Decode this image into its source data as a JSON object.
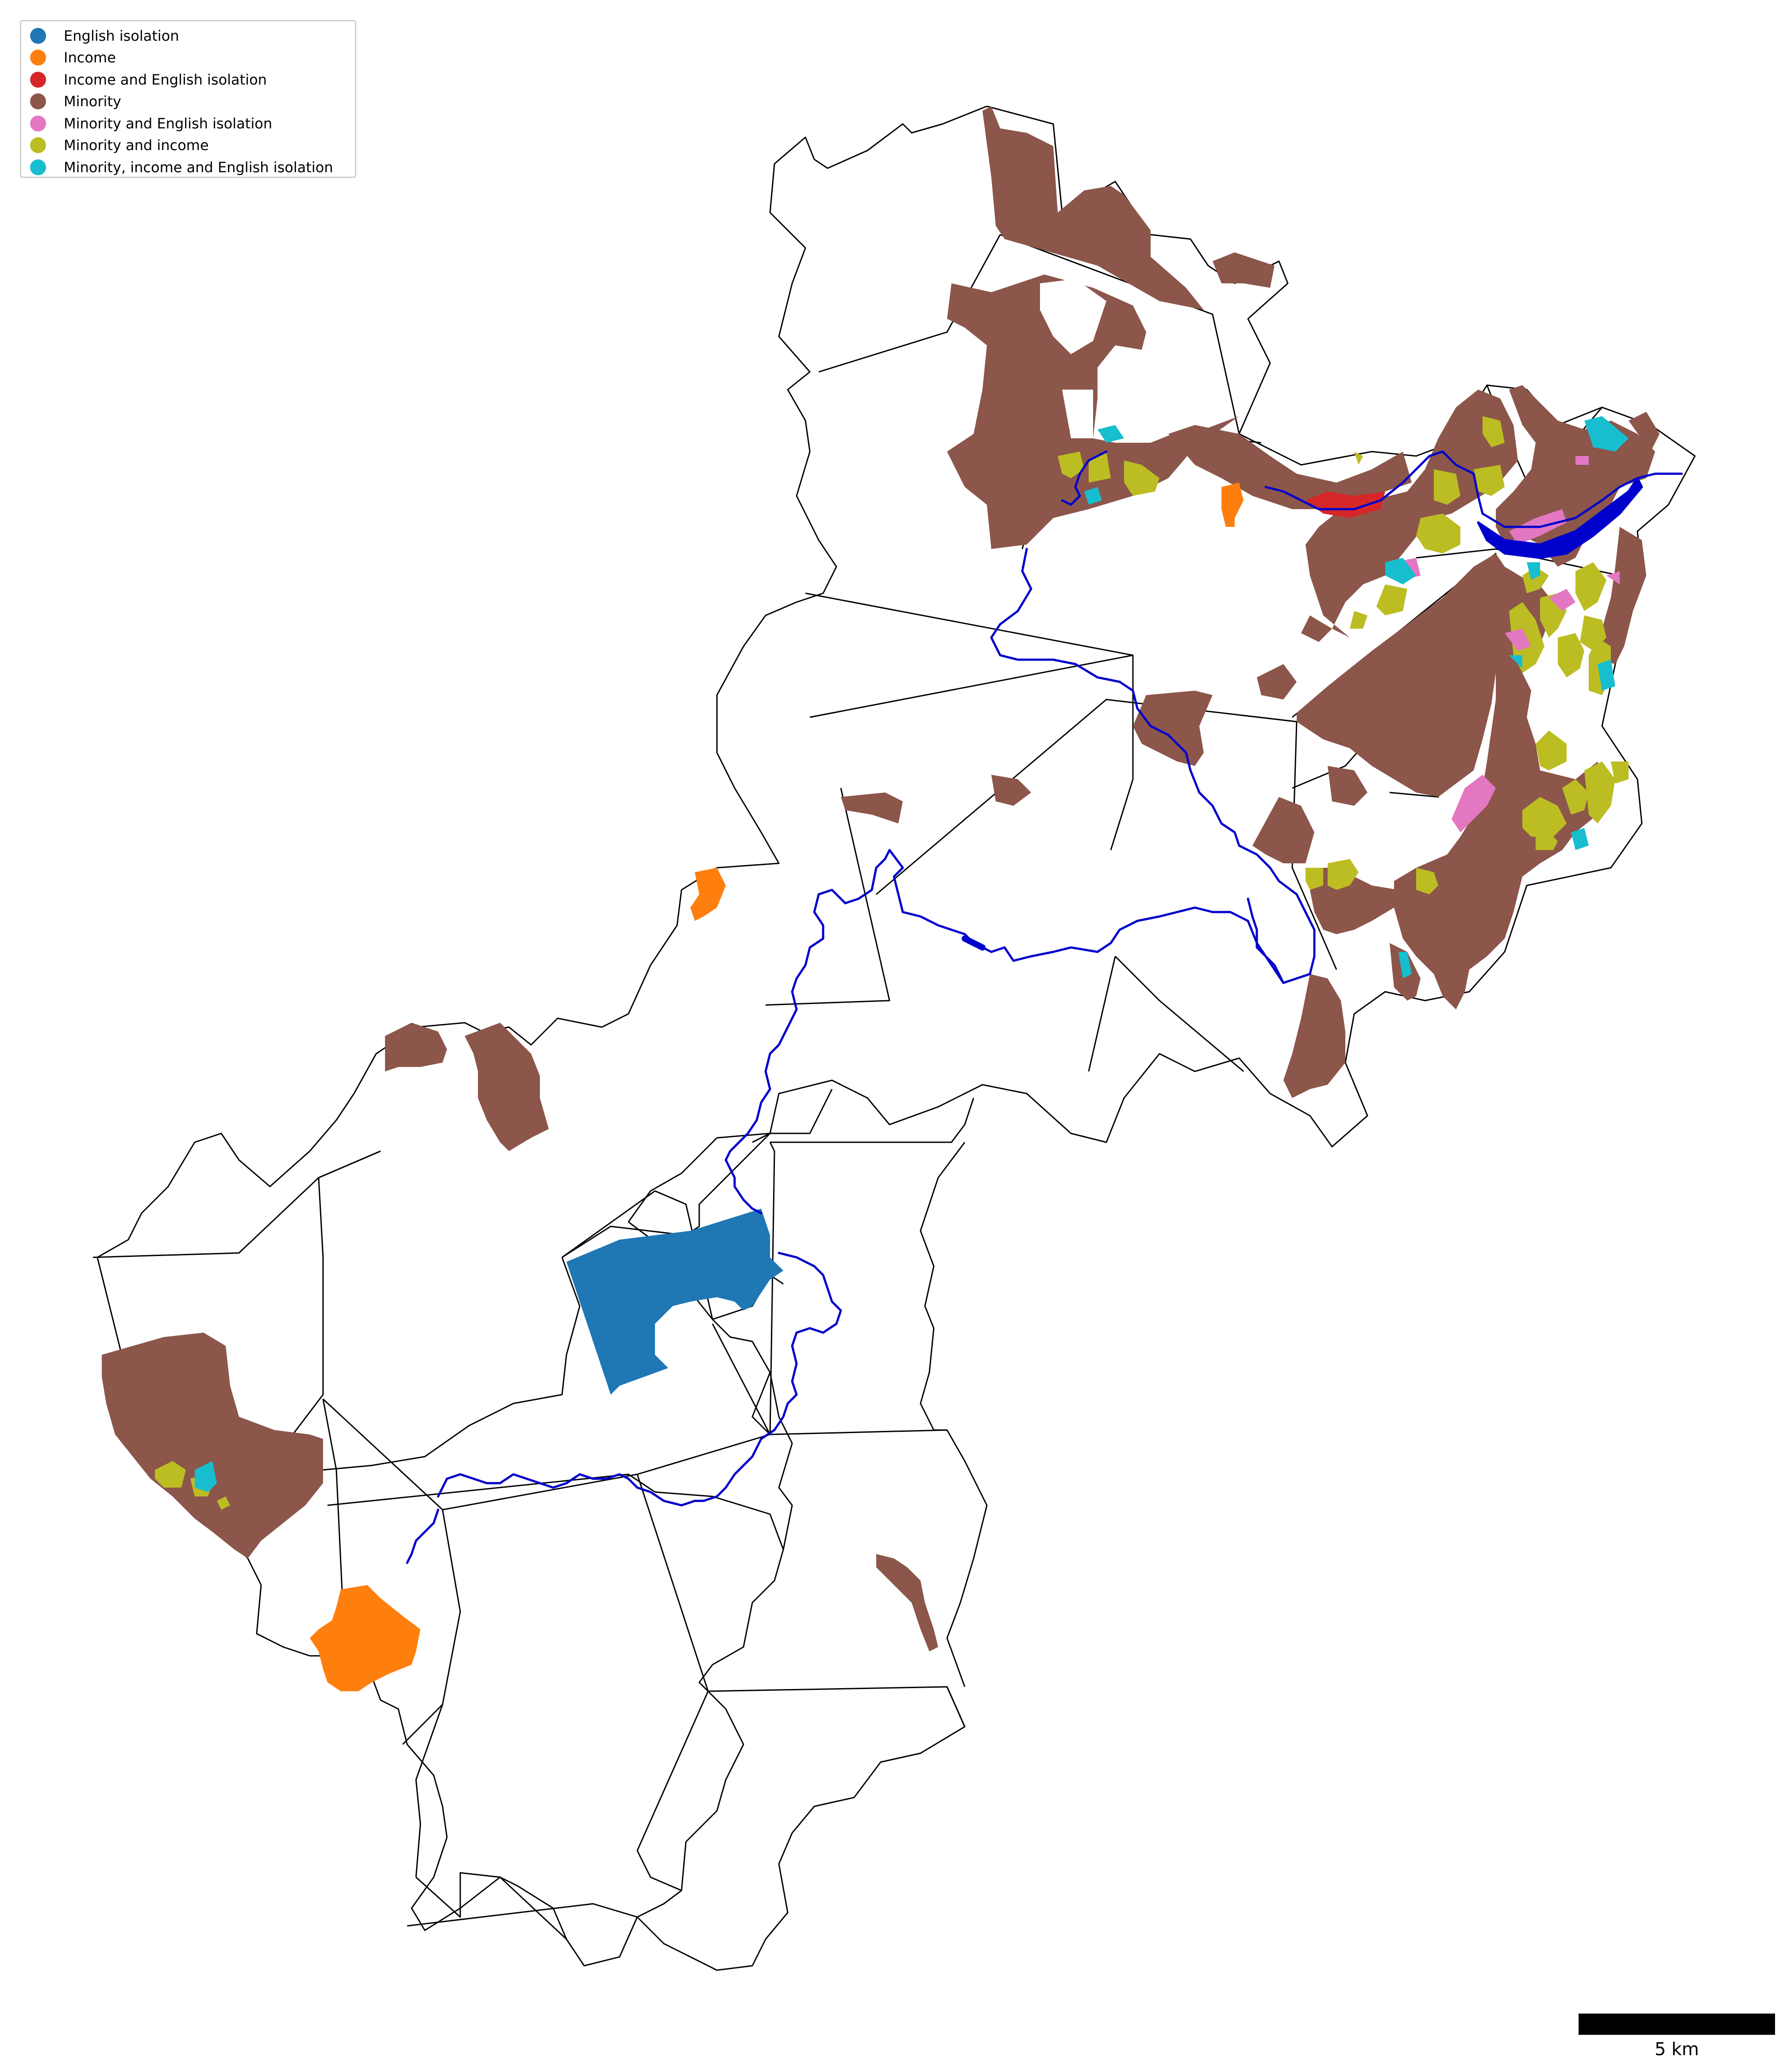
{
  "legend": {
    "items": [
      {
        "label": "English isolation",
        "color": "#1f77b4"
      },
      {
        "label": "Income",
        "color": "#ff7f0e"
      },
      {
        "label": "Income and English isolation",
        "color": "#d62728"
      },
      {
        "label": "Minority",
        "color": "#8c564b"
      },
      {
        "label": "Minority and English isolation",
        "color": "#e377c2"
      },
      {
        "label": "Minority and income",
        "color": "#bcbd22"
      },
      {
        "label": "Minority, income and English isolation",
        "color": "#17becf"
      }
    ]
  },
  "scalebar": {
    "label": "5 km",
    "distance_km": 5
  },
  "colors": {
    "river": "#0000cc",
    "boundary": "#000000",
    "background": "#ffffff"
  }
}
